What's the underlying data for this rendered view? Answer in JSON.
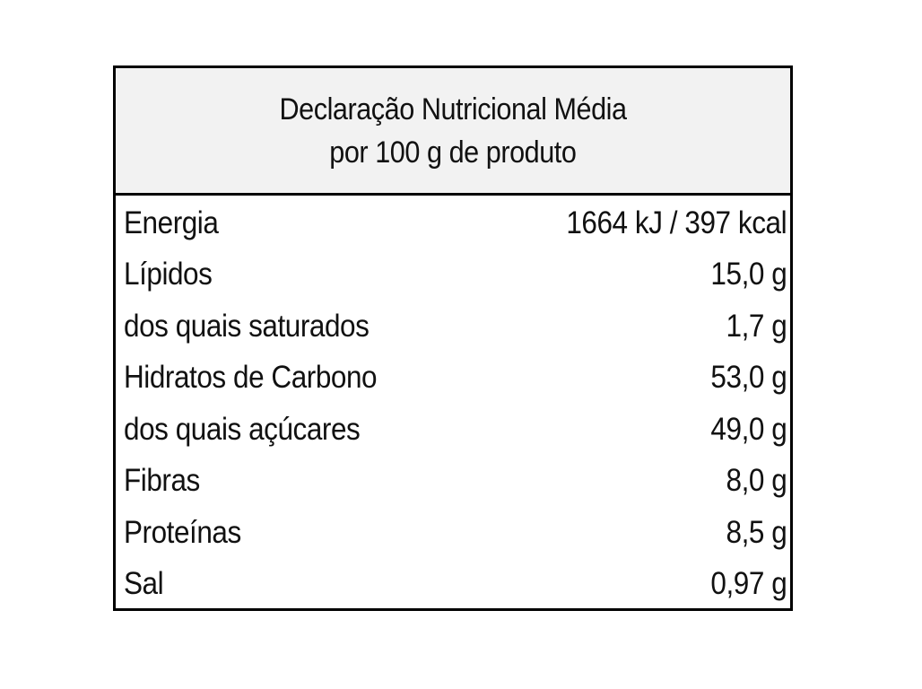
{
  "header": {
    "line1": "Declaração Nutricional  Média",
    "line2": "por 100 g de produto"
  },
  "rows": [
    {
      "label": "Energia",
      "value": "1664 kJ / 397 kcal"
    },
    {
      "label": "Lípidos",
      "value": "15,0 g"
    },
    {
      "label": "dos quais saturados",
      "value": "1,7 g"
    },
    {
      "label": "Hidratos de Carbono",
      "value": "53,0 g"
    },
    {
      "label": "dos quais açúcares",
      "value": "49,0 g"
    },
    {
      "label": "Fibras",
      "value": "8,0 g"
    },
    {
      "label": "Proteínas",
      "value": "8,5 g"
    },
    {
      "label": "Sal",
      "value": "0,97 g"
    }
  ],
  "colors": {
    "header_bg": "#f2f2f2",
    "border": "#000000"
  }
}
